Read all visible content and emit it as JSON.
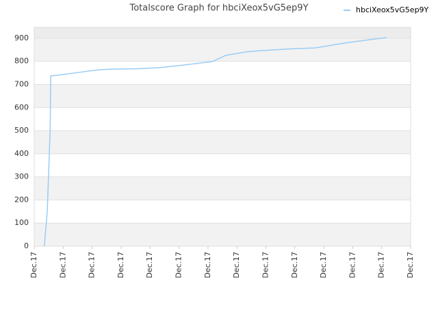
{
  "chart_data": {
    "type": "line",
    "title": "Totalscore Graph for hbciXeox5vG5ep9Y",
    "x": [
      0.35,
      0.45,
      0.55,
      0.57,
      0.95,
      1.42,
      2.13,
      2.6,
      3.55,
      4.26,
      4.96,
      6.15,
      6.62,
      7.33,
      7.8,
      8.98,
      9.69,
      10.87,
      12.17
    ],
    "series": [
      {
        "name": "hbciXeox5vG5ep9Y",
        "color": "#99ccf5",
        "values": [
          0,
          150,
          500,
          737,
          742,
          750,
          762,
          766,
          768,
          772,
          781,
          799,
          826,
          841,
          846,
          855,
          858,
          882,
          903
        ]
      }
    ],
    "xlim": [
      0,
      13
    ],
    "xticks": [
      {
        "value": 0,
        "label": "Dec.17"
      },
      {
        "value": 1,
        "label": "Dec.17"
      },
      {
        "value": 2,
        "label": "Dec.17"
      },
      {
        "value": 3,
        "label": "Dec.17"
      },
      {
        "value": 4,
        "label": "Dec.17"
      },
      {
        "value": 5,
        "label": "Dec.17"
      },
      {
        "value": 6,
        "label": "Dec.17"
      },
      {
        "value": 7,
        "label": "Dec.17"
      },
      {
        "value": 8,
        "label": "Dec.17"
      },
      {
        "value": 9,
        "label": "Dec.17"
      },
      {
        "value": 10,
        "label": "Dec.17"
      },
      {
        "value": 11,
        "label": "Dec.17"
      },
      {
        "value": 12,
        "label": "Dec.17"
      },
      {
        "value": 13,
        "label": "Dec.17"
      }
    ],
    "ylim": [
      0,
      947
    ],
    "yticks": [
      0,
      100,
      200,
      300,
      400,
      500,
      600,
      700,
      800,
      900
    ],
    "grid": true,
    "legend": "top-right"
  }
}
